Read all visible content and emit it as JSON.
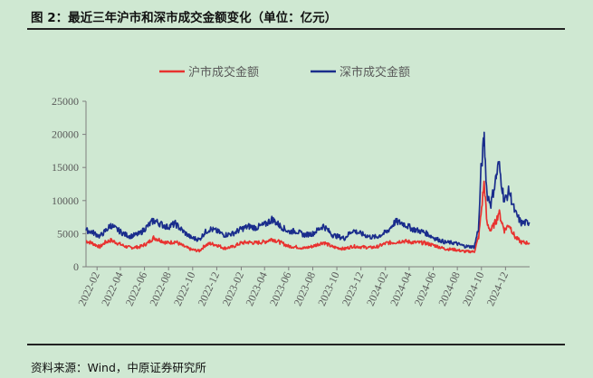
{
  "figure": {
    "title": "图 2：最近三年沪市和深市成交金额变化（单位：亿元）",
    "source": "资料来源：Wind，中原证券研究所"
  },
  "chart_data": {
    "type": "line",
    "x_range": [
      "2022-01-04",
      "2025-01-31"
    ],
    "x_ticks": [
      "2022-02",
      "2022-04",
      "2022-06",
      "2022-08",
      "2022-10",
      "2022-12",
      "2023-02",
      "2023-04",
      "2023-06",
      "2023-08",
      "2023-10",
      "2023-12",
      "2024-02",
      "2024-04",
      "2024-06",
      "2024-08",
      "2024-10",
      "2024-12"
    ],
    "ylim": [
      0,
      25000
    ],
    "y_ticks": [
      "0",
      "5000",
      "10000",
      "15000",
      "20000",
      "25000"
    ],
    "legend_position": "top-center",
    "series": [
      {
        "name": "沪市成交金额",
        "color": "#e8322f",
        "points": [
          [
            "2022-01-04",
            3900
          ],
          [
            "2022-01-18",
            3600
          ],
          [
            "2022-02-08",
            3000
          ],
          [
            "2022-02-22",
            3700
          ],
          [
            "2022-03-08",
            4000
          ],
          [
            "2022-03-16",
            3800
          ],
          [
            "2022-04-12",
            3100
          ],
          [
            "2022-04-26",
            2900
          ],
          [
            "2022-05-20",
            3000
          ],
          [
            "2022-06-10",
            3600
          ],
          [
            "2022-06-24",
            4400
          ],
          [
            "2022-07-08",
            4100
          ],
          [
            "2022-07-28",
            3600
          ],
          [
            "2022-08-18",
            3800
          ],
          [
            "2022-09-08",
            3100
          ],
          [
            "2022-09-27",
            2600
          ],
          [
            "2022-10-18",
            2400
          ],
          [
            "2022-11-01",
            3200
          ],
          [
            "2022-11-14",
            3500
          ],
          [
            "2022-12-01",
            3300
          ],
          [
            "2022-12-20",
            2800
          ],
          [
            "2023-01-10",
            3000
          ],
          [
            "2023-02-01",
            3600
          ],
          [
            "2023-02-20",
            3700
          ],
          [
            "2023-03-10",
            3600
          ],
          [
            "2023-04-03",
            3800
          ],
          [
            "2023-04-20",
            4200
          ],
          [
            "2023-05-10",
            3700
          ],
          [
            "2023-06-01",
            3100
          ],
          [
            "2023-06-20",
            3000
          ],
          [
            "2023-07-10",
            2800
          ],
          [
            "2023-08-01",
            3100
          ],
          [
            "2023-08-28",
            3700
          ],
          [
            "2023-09-20",
            3000
          ],
          [
            "2023-10-20",
            2700
          ],
          [
            "2023-11-10",
            3100
          ],
          [
            "2023-12-01",
            3000
          ],
          [
            "2023-12-25",
            2900
          ],
          [
            "2024-01-10",
            3000
          ],
          [
            "2024-02-05",
            3600
          ],
          [
            "2024-02-26",
            3700
          ],
          [
            "2024-03-15",
            3900
          ],
          [
            "2024-04-10",
            3700
          ],
          [
            "2024-05-10",
            3600
          ],
          [
            "2024-06-05",
            3200
          ],
          [
            "2024-07-01",
            2700
          ],
          [
            "2024-07-25",
            2600
          ],
          [
            "2024-08-20",
            2300
          ],
          [
            "2024-09-13",
            2300
          ],
          [
            "2024-09-24",
            4500
          ],
          [
            "2024-09-30",
            8000
          ],
          [
            "2024-10-08",
            12800
          ],
          [
            "2024-10-15",
            6500
          ],
          [
            "2024-10-25",
            5500
          ],
          [
            "2024-11-08",
            7000
          ],
          [
            "2024-11-14",
            8300
          ],
          [
            "2024-11-28",
            5500
          ],
          [
            "2024-12-10",
            6400
          ],
          [
            "2024-12-25",
            4500
          ],
          [
            "2025-01-10",
            3700
          ],
          [
            "2025-01-31",
            3600
          ]
        ]
      },
      {
        "name": "深市成交金额",
        "color": "#1a2d8c",
        "points": [
          [
            "2022-01-04",
            5500
          ],
          [
            "2022-01-18",
            5300
          ],
          [
            "2022-02-08",
            4600
          ],
          [
            "2022-02-22",
            5400
          ],
          [
            "2022-03-08",
            6300
          ],
          [
            "2022-03-16",
            5900
          ],
          [
            "2022-04-12",
            4900
          ],
          [
            "2022-04-26",
            4600
          ],
          [
            "2022-05-20",
            5000
          ],
          [
            "2022-06-10",
            6200
          ],
          [
            "2022-06-24",
            7000
          ],
          [
            "2022-07-08",
            6600
          ],
          [
            "2022-07-28",
            6000
          ],
          [
            "2022-08-18",
            6500
          ],
          [
            "2022-09-08",
            5300
          ],
          [
            "2022-09-27",
            4400
          ],
          [
            "2022-10-18",
            4100
          ],
          [
            "2022-11-01",
            5200
          ],
          [
            "2022-11-14",
            5700
          ],
          [
            "2022-12-01",
            5400
          ],
          [
            "2022-12-20",
            4800
          ],
          [
            "2023-01-10",
            5000
          ],
          [
            "2023-02-01",
            5700
          ],
          [
            "2023-02-20",
            6100
          ],
          [
            "2023-03-10",
            5900
          ],
          [
            "2023-04-03",
            6400
          ],
          [
            "2023-04-20",
            7200
          ],
          [
            "2023-05-10",
            6200
          ],
          [
            "2023-06-01",
            5300
          ],
          [
            "2023-06-20",
            5400
          ],
          [
            "2023-07-10",
            4800
          ],
          [
            "2023-08-01",
            5000
          ],
          [
            "2023-08-28",
            6200
          ],
          [
            "2023-09-20",
            4800
          ],
          [
            "2023-10-20",
            4300
          ],
          [
            "2023-11-10",
            5500
          ],
          [
            "2023-12-01",
            5000
          ],
          [
            "2023-12-25",
            4500
          ],
          [
            "2024-01-10",
            4500
          ],
          [
            "2024-02-05",
            5300
          ],
          [
            "2024-02-26",
            6800
          ],
          [
            "2024-03-15",
            6600
          ],
          [
            "2024-04-10",
            5700
          ],
          [
            "2024-05-10",
            5200
          ],
          [
            "2024-06-05",
            4300
          ],
          [
            "2024-07-01",
            3700
          ],
          [
            "2024-07-25",
            3600
          ],
          [
            "2024-08-20",
            3100
          ],
          [
            "2024-09-13",
            3000
          ],
          [
            "2024-09-24",
            6000
          ],
          [
            "2024-09-30",
            14500
          ],
          [
            "2024-10-08",
            19400
          ],
          [
            "2024-10-15",
            11000
          ],
          [
            "2024-10-25",
            9500
          ],
          [
            "2024-11-08",
            13800
          ],
          [
            "2024-11-14",
            15600
          ],
          [
            "2024-11-28",
            9800
          ],
          [
            "2024-12-10",
            11500
          ],
          [
            "2024-12-25",
            8200
          ],
          [
            "2025-01-10",
            6600
          ],
          [
            "2025-01-31",
            6700
          ]
        ]
      }
    ]
  }
}
